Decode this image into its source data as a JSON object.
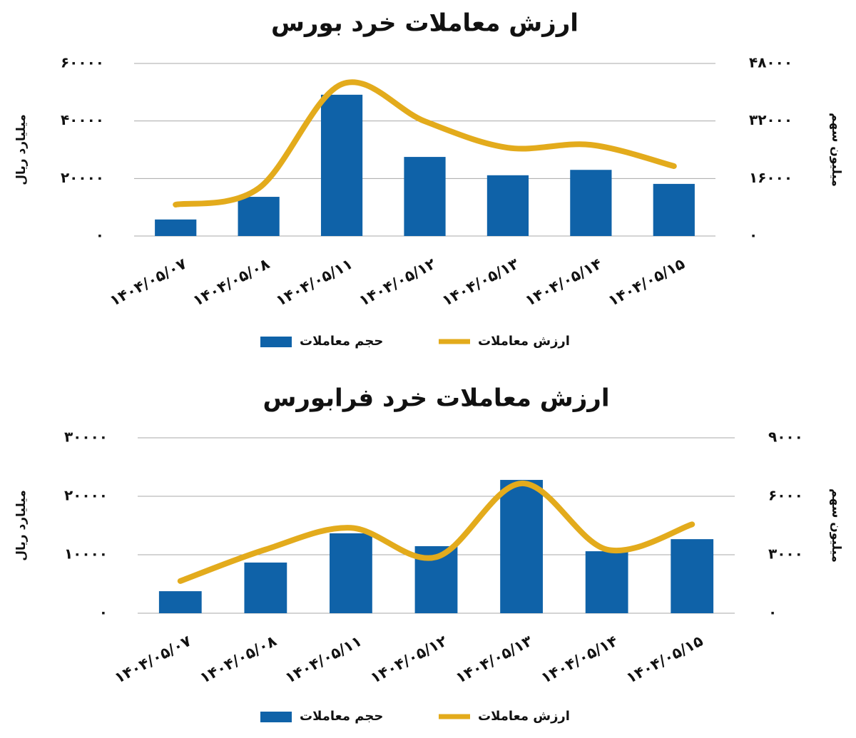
{
  "chart_data": [
    {
      "type": "combo",
      "title": "ارزش معاملات خرد بورس",
      "y_label": "میلیارد ریال",
      "y2_label": "میلیون سهم",
      "categories": [
        "۱۴۰۴/۰۵/۰۷",
        "۱۴۰۴/۰۵/۰۸",
        "۱۴۰۴/۰۵/۱۱",
        "۱۴۰۴/۰۵/۱۲",
        "۱۴۰۴/۰۵/۱۳",
        "۱۴۰۴/۰۵/۱۴",
        "۱۴۰۴/۰۵/۱۵"
      ],
      "series": [
        {
          "name": "حجم معاملات",
          "type": "bar",
          "axis": "y2",
          "color": "#0f62a8",
          "values": [
            4600,
            10900,
            39300,
            22000,
            16900,
            18400,
            14500
          ]
        },
        {
          "name": "ارزش معاملات",
          "type": "line",
          "axis": "y",
          "color": "#e3ab1c",
          "values": [
            10900,
            16600,
            52800,
            39900,
            30700,
            31700,
            24300
          ]
        }
      ],
      "ylim": [
        0,
        60000
      ],
      "yticks": [
        {
          "value": 0,
          "label": "۰"
        },
        {
          "value": 20000,
          "label": "۲۰۰۰۰"
        },
        {
          "value": 40000,
          "label": "۴۰۰۰۰"
        },
        {
          "value": 60000,
          "label": "۶۰۰۰۰"
        }
      ],
      "y2lim": [
        0,
        48000
      ],
      "y2ticks": [
        {
          "value": 0,
          "label": "۰"
        },
        {
          "value": 16000,
          "label": "۱۶۰۰۰"
        },
        {
          "value": 32000,
          "label": "۳۲۰۰۰"
        },
        {
          "value": 48000,
          "label": "۴۸۰۰۰"
        }
      ],
      "grid": true,
      "legend": "bottom"
    },
    {
      "type": "combo",
      "title": "ارزش معاملات خرد فرابورس",
      "y_label": "میلیارد ریال",
      "y2_label": "میلیون سهم",
      "categories": [
        "۱۴۰۴/۰۵/۰۷",
        "۱۴۰۴/۰۵/۰۸",
        "۱۴۰۴/۰۵/۱۱",
        "۱۴۰۴/۰۵/۱۲",
        "۱۴۰۴/۰۵/۱۳",
        "۱۴۰۴/۰۵/۱۴",
        "۱۴۰۴/۰۵/۱۵"
      ],
      "series": [
        {
          "name": "حجم معاملات",
          "type": "bar",
          "axis": "y2",
          "color": "#0f62a8",
          "values": [
            1130,
            2600,
            4100,
            3440,
            6840,
            3180,
            3800
          ]
        },
        {
          "name": "ارزش معاملات",
          "type": "line",
          "axis": "y",
          "color": "#e3ab1c",
          "values": [
            5500,
            10900,
            14600,
            9600,
            22200,
            10900,
            15200
          ]
        }
      ],
      "ylim": [
        0,
        30000
      ],
      "yticks": [
        {
          "value": 0,
          "label": "۰"
        },
        {
          "value": 10000,
          "label": "۱۰۰۰۰"
        },
        {
          "value": 20000,
          "label": "۲۰۰۰۰"
        },
        {
          "value": 30000,
          "label": "۳۰۰۰۰"
        }
      ],
      "y2lim": [
        0,
        9000
      ],
      "y2ticks": [
        {
          "value": 0,
          "label": "۰"
        },
        {
          "value": 3000,
          "label": "۳۰۰۰"
        },
        {
          "value": 6000,
          "label": "۶۰۰۰"
        },
        {
          "value": 9000,
          "label": "۹۰۰۰"
        }
      ],
      "grid": true,
      "legend": "bottom"
    }
  ]
}
